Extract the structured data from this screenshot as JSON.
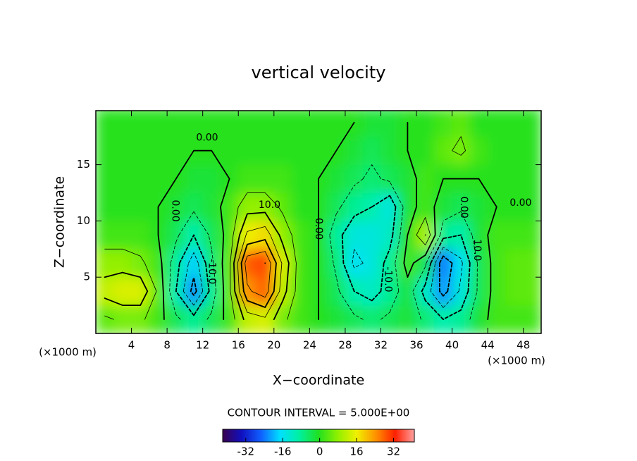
{
  "chart_data": {
    "type": "contour",
    "title": "vertical velocity",
    "x_label": "X−coordinate",
    "y_label": "Z−coordinate",
    "x_unit_label": "(×1000 m)",
    "x_unit_label_right": "(×1000 m)",
    "contour_text": "CONTOUR INTERVAL = 5.000E+00",
    "contour_interval": 5,
    "xlim": [
      0,
      50
    ],
    "ylim": [
      0,
      19.8
    ],
    "xticks": [
      4,
      8,
      12,
      16,
      20,
      24,
      28,
      32,
      36,
      40,
      44,
      48
    ],
    "yticks": [
      5,
      10,
      15
    ],
    "x": [
      1,
      3,
      5,
      7,
      9,
      11,
      13,
      15,
      17,
      19,
      21,
      23,
      25,
      27,
      29,
      31,
      33,
      35,
      37,
      39,
      41,
      43,
      45,
      47,
      49
    ],
    "z": [
      1.25,
      3.75,
      6.25,
      8.75,
      11.25,
      13.75,
      16.25,
      18.75
    ],
    "values": [
      [
        4,
        6,
        6,
        2,
        -4,
        -8,
        -4,
        2,
        12,
        14,
        6,
        2,
        0,
        -2,
        -4,
        -6,
        -4,
        -2,
        -6,
        -10,
        -8,
        -2,
        2,
        2,
        2
      ],
      [
        12,
        14,
        14,
        4,
        -10,
        -22,
        -8,
        4,
        24,
        28,
        12,
        2,
        0,
        -4,
        -10,
        -12,
        -8,
        -2,
        -12,
        -22,
        -14,
        -4,
        2,
        4,
        4
      ],
      [
        8,
        8,
        6,
        2,
        -8,
        -18,
        -6,
        4,
        28,
        30,
        14,
        2,
        0,
        -6,
        -16,
        -14,
        -8,
        2,
        -4,
        -24,
        -16,
        -4,
        2,
        4,
        4
      ],
      [
        2,
        2,
        2,
        0,
        -4,
        -10,
        -4,
        2,
        16,
        18,
        8,
        2,
        0,
        -8,
        -14,
        -14,
        -12,
        0,
        10,
        -8,
        -10,
        -2,
        2,
        2,
        2
      ],
      [
        0,
        0,
        0,
        0,
        -2,
        -4,
        -2,
        2,
        8,
        8,
        4,
        0,
        0,
        -4,
        -8,
        -10,
        -14,
        -2,
        2,
        -2,
        -4,
        -2,
        0,
        0,
        0
      ],
      [
        0,
        0,
        0,
        0,
        0,
        -2,
        -2,
        0,
        2,
        2,
        2,
        0,
        0,
        -2,
        -4,
        -6,
        -4,
        -2,
        2,
        0,
        0,
        0,
        0,
        0,
        0
      ],
      [
        0,
        0,
        0,
        0,
        0,
        0,
        0,
        0,
        0,
        0,
        0,
        0,
        0,
        0,
        -2,
        -4,
        -2,
        0,
        0,
        4,
        6,
        2,
        0,
        0,
        0
      ],
      [
        0,
        0,
        0,
        0,
        0,
        0,
        0,
        0,
        0,
        0,
        0,
        0,
        0,
        0,
        0,
        -2,
        -2,
        0,
        0,
        2,
        4,
        0,
        0,
        0,
        0
      ]
    ],
    "contour_labels": [
      {
        "text": "0.00",
        "x": 12.5,
        "z": 17.4,
        "rotate": false
      },
      {
        "text": "0.00",
        "x": 8.9,
        "z": 10.9,
        "rotate": true
      },
      {
        "text": "10.0",
        "x": 19.5,
        "z": 11.4,
        "rotate": false
      },
      {
        "text": "0.00",
        "x": 25,
        "z": 9.3,
        "rotate": true
      },
      {
        "text": "-10.0",
        "x": 32.8,
        "z": 4.8,
        "rotate": true
      },
      {
        "text": "-10.0",
        "x": 13,
        "z": 5.5,
        "rotate": true
      },
      {
        "text": "0.00",
        "x": 41.3,
        "z": 11.2,
        "rotate": true
      },
      {
        "text": "10.0",
        "x": 42.8,
        "z": 7.4,
        "rotate": true
      },
      {
        "text": "0.00",
        "x": 47.7,
        "z": 11.6,
        "rotate": false
      }
    ],
    "clim": [
      -42,
      41
    ],
    "colormap": [
      "#3a0050",
      "#1010c0",
      "#1060ff",
      "#00e0ff",
      "#00f0a0",
      "#20e020",
      "#90f000",
      "#f0f000",
      "#ff9000",
      "#ff2000",
      "#ffa0a0"
    ],
    "colorbar_ticks": [
      -32,
      -16,
      0,
      16,
      32
    ]
  }
}
